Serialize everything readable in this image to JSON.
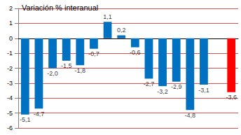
{
  "chart_data": {
    "type": "bar",
    "title": "Variación % interanual",
    "categories": [
      null,
      null,
      null,
      null,
      null,
      null,
      null,
      null,
      null,
      null,
      null,
      null,
      null,
      null,
      null,
      null
    ],
    "values": [
      -5.1,
      -4.7,
      -2.0,
      -1.5,
      -1.8,
      -0.7,
      1.1,
      0.2,
      -0.6,
      -2.7,
      -3.2,
      -2.9,
      -4.8,
      -3.1,
      null,
      -3.6
    ],
    "value_labels": [
      "-5,1",
      "-4,7",
      "-2,0",
      "-1,5",
      "-1,8",
      "-0,7",
      "1,1",
      "0,2",
      "-0,6",
      "-2,7",
      "-3,2",
      "-2,9",
      "-4,8",
      "-3,1",
      null,
      "-3,6"
    ],
    "colors": [
      "#0070c0",
      "#0070c0",
      "#0070c0",
      "#0070c0",
      "#0070c0",
      "#0070c0",
      "#0070c0",
      "#0070c0",
      "#0070c0",
      "#0070c0",
      "#0070c0",
      "#0070c0",
      "#0070c0",
      "#0070c0",
      "#0070c0",
      "#ff0000"
    ],
    "ylim": [
      -6,
      2
    ],
    "yticks": [
      -6,
      -5,
      -4,
      -3,
      -2,
      -1,
      0,
      1,
      2
    ],
    "grid": true,
    "data_labels": true,
    "tick_labels": "y"
  }
}
